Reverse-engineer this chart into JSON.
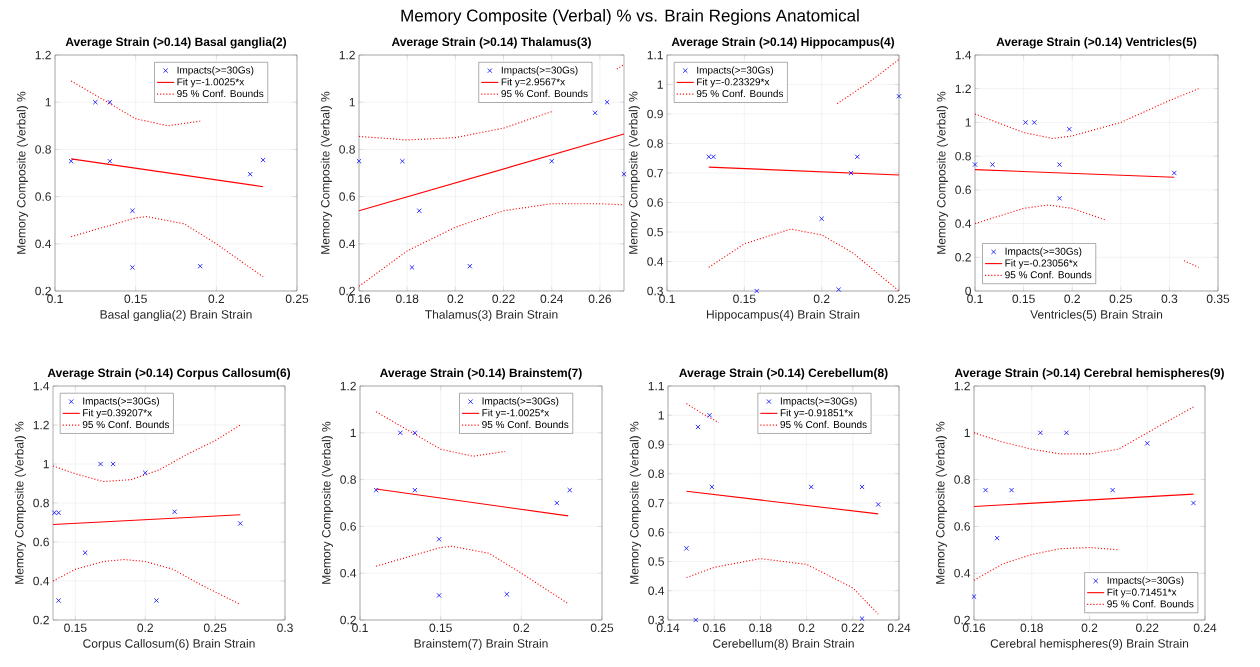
{
  "chart_data": [
    {
      "type": "scatter",
      "title": "Average Strain (>0.14) Basal ganglia(2)",
      "xlabel": "Basal ganglia(2) Brain Strain",
      "ylabel": "Memory Composite (Verbal) %",
      "annotations": [
        "Memory Composite (Verbal) % vs. Brain Regions Anatomical"
      ],
      "xlim": [
        0.1,
        0.25
      ],
      "ylim": [
        0.2,
        1.2
      ],
      "xticks": [
        0.1,
        0.15,
        0.2,
        0.25
      ],
      "yticks": [
        0.2,
        0.4,
        0.6,
        0.8,
        1,
        1.2
      ],
      "grid": true,
      "legend": "top right",
      "series": [
        {
          "name": "Impacts(>=30Gs)",
          "marker": "cross",
          "color": "#0000ff",
          "x": [
            0.11,
            0.125,
            0.134,
            0.134,
            0.148,
            0.148,
            0.19,
            0.221,
            0.229
          ],
          "values": [
            0.75,
            1,
            1,
            0.75,
            0.54,
            0.3,
            0.305,
            0.695,
            0.755
          ]
        },
        {
          "name": "Fit y=-1.0025*x",
          "type": "line",
          "line_style": "solid",
          "color": "#ff0000",
          "x": [
            0.11,
            0.229
          ],
          "values": [
            0.76,
            0.642
          ]
        },
        {
          "name": "95 % Conf. Bounds",
          "type": "line",
          "line_style": "dotted",
          "color": "#ff0000",
          "x": [
            0.11,
            0.13,
            0.15,
            0.17,
            0.19
          ],
          "values": [
            1.09,
            1.01,
            0.93,
            0.9,
            0.92
          ]
        },
        {
          "type": "line",
          "line_style": "dotted",
          "color": "#ff0000",
          "x": [
            0.11,
            0.13,
            0.15,
            0.157,
            0.18,
            0.2,
            0.229
          ],
          "values": [
            0.43,
            0.47,
            0.51,
            0.515,
            0.485,
            0.4,
            0.26
          ]
        }
      ]
    },
    {
      "type": "scatter",
      "title": "Average Strain (>0.14) Thalamus(3)",
      "xlabel": "Thalamus(3) Brain Strain",
      "ylabel": "Memory Composite (Verbal) %",
      "xlim": [
        0.16,
        0.27
      ],
      "ylim": [
        0.2,
        1.2
      ],
      "xticks": [
        0.16,
        0.18,
        0.2,
        0.22,
        0.24,
        0.26
      ],
      "yticks": [
        0.2,
        0.4,
        0.6,
        0.8,
        1,
        1.2
      ],
      "grid": true,
      "legend": "top right",
      "series": [
        {
          "name": "Impacts(>=30Gs)",
          "marker": "cross",
          "color": "#0000ff",
          "x": [
            0.16,
            0.178,
            0.182,
            0.185,
            0.206,
            0.24,
            0.258,
            0.263,
            0.27
          ],
          "values": [
            0.75,
            0.75,
            0.3,
            0.54,
            0.305,
            0.75,
            0.955,
            1,
            0.695
          ]
        },
        {
          "name": "Fit y=2.9567*x",
          "type": "line",
          "line_style": "solid",
          "color": "#ff0000",
          "x": [
            0.16,
            0.27
          ],
          "values": [
            0.54,
            0.865
          ]
        },
        {
          "name": "95 % Conf. Bounds",
          "type": "line",
          "line_style": "dotted",
          "color": "#ff0000",
          "x": [
            0.16,
            0.18,
            0.2,
            0.22,
            0.24,
            0.255,
            0.267,
            0.27
          ],
          "values": [
            0.855,
            0.84,
            0.85,
            0.89,
            0.96,
            null,
            1.14,
            1.16
          ]
        },
        {
          "type": "line",
          "line_style": "dotted",
          "color": "#ff0000",
          "x": [
            0.16,
            0.18,
            0.2,
            0.22,
            0.24,
            0.26,
            0.27
          ],
          "values": [
            0.22,
            0.37,
            0.47,
            0.54,
            0.57,
            0.57,
            0.565
          ]
        }
      ]
    },
    {
      "type": "scatter",
      "title": "Average Strain (>0.14) Hippocampus(4)",
      "xlabel": "Hippocampus(4) Brain Strain",
      "ylabel": "Memory Composite (Verbal) %",
      "xlim": [
        0.1,
        0.25
      ],
      "ylim": [
        0.3,
        1.1
      ],
      "xticks": [
        0.1,
        0.15,
        0.2,
        0.25
      ],
      "yticks": [
        0.3,
        0.4,
        0.5,
        0.6,
        0.7,
        0.8,
        0.9,
        1,
        1.1
      ],
      "grid": true,
      "legend": "top left",
      "series": [
        {
          "name": "Impacts(>=30Gs)",
          "marker": "cross",
          "color": "#0000ff",
          "x": [
            0.127,
            0.13,
            0.158,
            0.2,
            0.211,
            0.219,
            0.223,
            0.25
          ],
          "values": [
            0.755,
            0.755,
            0.3,
            0.545,
            0.305,
            0.7,
            0.755,
            0.96
          ]
        },
        {
          "name": "Fit y=-0.23329*x",
          "type": "line",
          "line_style": "solid",
          "color": "#ff0000",
          "x": [
            0.127,
            0.25
          ],
          "values": [
            0.72,
            0.693
          ]
        },
        {
          "name": "95 % Conf. Bounds",
          "type": "line",
          "line_style": "dotted",
          "color": "#ff0000",
          "x": [
            0.21,
            0.23,
            0.25
          ],
          "values": [
            0.935,
            1.005,
            1.085
          ]
        },
        {
          "type": "line",
          "line_style": "dotted",
          "color": "#ff0000",
          "x": [
            0.127,
            0.15,
            0.18,
            0.2,
            0.22,
            0.25
          ],
          "values": [
            0.38,
            0.46,
            0.51,
            0.49,
            0.43,
            0.3
          ]
        }
      ]
    },
    {
      "type": "scatter",
      "title": "Average Strain (>0.14) Ventricles(5)",
      "xlabel": "Ventricles(5) Brain Strain",
      "ylabel": "Memory Composite (Verbal) %",
      "xlim": [
        0.1,
        0.35
      ],
      "ylim": [
        0,
        1.4
      ],
      "xticks": [
        0.1,
        0.15,
        0.2,
        0.25,
        0.3,
        0.35
      ],
      "yticks": [
        0,
        0.2,
        0.4,
        0.6,
        0.8,
        1,
        1.2,
        1.4
      ],
      "grid": true,
      "legend": "bottom left",
      "series": [
        {
          "name": "Impacts(>=30Gs)",
          "marker": "cross",
          "color": "#0000ff",
          "x": [
            0.1,
            0.118,
            0.152,
            0.161,
            0.187,
            0.187,
            0.197,
            0.305
          ],
          "values": [
            0.75,
            0.75,
            1,
            1,
            0.75,
            0.55,
            0.96,
            0.7
          ]
        },
        {
          "name": "Fit y=-0.23056*x",
          "type": "line",
          "line_style": "solid",
          "color": "#ff0000",
          "x": [
            0.1,
            0.305
          ],
          "values": [
            0.72,
            0.675
          ]
        },
        {
          "name": "95 % Conf. Bounds",
          "type": "line",
          "line_style": "dotted",
          "color": "#ff0000",
          "x": [
            0.1,
            0.15,
            0.18,
            0.2,
            0.25,
            0.3,
            0.33
          ],
          "values": [
            1.05,
            0.94,
            0.905,
            0.92,
            1,
            1.13,
            1.2
          ]
        },
        {
          "type": "line",
          "line_style": "dotted",
          "color": "#ff0000",
          "x": [
            0.1,
            0.15,
            0.175,
            0.2,
            0.235,
            0.27,
            0.315,
            0.33
          ],
          "values": [
            0.4,
            0.49,
            0.51,
            0.49,
            0.42,
            null,
            0.18,
            0.14
          ]
        }
      ]
    },
    {
      "type": "scatter",
      "title": "Average Strain (>0.14) Corpus Callosum(6)",
      "xlabel": "Corpus Callosum(6) Brain Strain",
      "ylabel": "Memory Composite (Verbal) %",
      "xlim": [
        0.134,
        0.3
      ],
      "ylim": [
        0.2,
        1.4
      ],
      "xticks": [
        0.15,
        0.2,
        0.25,
        0.3
      ],
      "yticks": [
        0.2,
        0.4,
        0.6,
        0.8,
        1,
        1.2,
        1.4
      ],
      "grid": true,
      "legend": "top left",
      "series": [
        {
          "name": "Impacts(>=30Gs)",
          "marker": "cross",
          "color": "#0000ff",
          "x": [
            0.135,
            0.138,
            0.138,
            0.157,
            0.168,
            0.177,
            0.2,
            0.208,
            0.221,
            0.268
          ],
          "values": [
            0.75,
            0.75,
            0.3,
            0.545,
            1,
            1,
            0.955,
            0.3,
            0.755,
            0.695
          ]
        },
        {
          "name": "Fit y=0.39207*x",
          "type": "line",
          "line_style": "solid",
          "color": "#ff0000",
          "x": [
            0.134,
            0.268
          ],
          "values": [
            0.69,
            0.74
          ]
        },
        {
          "name": "95 % Conf. Bounds",
          "type": "line",
          "line_style": "dotted",
          "color": "#ff0000",
          "x": [
            0.134,
            0.15,
            0.17,
            0.19,
            0.21,
            0.23,
            0.25,
            0.268
          ],
          "values": [
            0.99,
            0.95,
            0.91,
            0.92,
            0.97,
            1.05,
            1.12,
            1.2
          ]
        },
        {
          "type": "line",
          "line_style": "dotted",
          "color": "#ff0000",
          "x": [
            0.134,
            0.15,
            0.17,
            0.185,
            0.2,
            0.22,
            0.24,
            0.268
          ],
          "values": [
            0.4,
            0.46,
            0.5,
            0.51,
            0.5,
            0.46,
            0.38,
            0.28
          ]
        }
      ]
    },
    {
      "type": "scatter",
      "title": "Average Strain (>0.14) Brainstem(7)",
      "xlabel": "Brainstem(7) Brain Strain",
      "ylabel": "Memory Composite (Verbal) %",
      "xlim": [
        0.1,
        0.25
      ],
      "ylim": [
        0.2,
        1.2
      ],
      "xticks": [
        0.1,
        0.15,
        0.2,
        0.25
      ],
      "yticks": [
        0.2,
        0.4,
        0.6,
        0.8,
        1,
        1.2
      ],
      "grid": true,
      "legend": "top right",
      "series": [
        {
          "name": "Impacts(>=30Gs)",
          "marker": "cross",
          "color": "#0000ff",
          "x": [
            0.11,
            0.125,
            0.134,
            0.134,
            0.149,
            0.149,
            0.191,
            0.222,
            0.23
          ],
          "values": [
            0.755,
            1,
            1,
            0.755,
            0.545,
            0.305,
            0.31,
            0.7,
            0.755
          ]
        },
        {
          "name": "Fit y=-1.0025*x",
          "type": "line",
          "line_style": "solid",
          "color": "#ff0000",
          "x": [
            0.11,
            0.229
          ],
          "values": [
            0.76,
            0.645
          ]
        },
        {
          "name": "95 % Conf. Bounds",
          "type": "line",
          "line_style": "dotted",
          "color": "#ff0000",
          "x": [
            0.11,
            0.13,
            0.15,
            0.17,
            0.19
          ],
          "values": [
            1.09,
            1.01,
            0.93,
            0.9,
            0.92
          ]
        },
        {
          "type": "line",
          "line_style": "dotted",
          "color": "#ff0000",
          "x": [
            0.11,
            0.13,
            0.15,
            0.157,
            0.18,
            0.2,
            0.229
          ],
          "values": [
            0.43,
            0.47,
            0.51,
            0.515,
            0.485,
            0.4,
            0.27
          ]
        }
      ]
    },
    {
      "type": "scatter",
      "title": "Average Strain (>0.14) Cerebellum(8)",
      "xlabel": "Cerebellum(8) Brain Strain",
      "ylabel": "Memory Composite (Verbal) %",
      "xlim": [
        0.14,
        0.24
      ],
      "ylim": [
        0.3,
        1.1
      ],
      "xticks": [
        0.14,
        0.16,
        0.18,
        0.2,
        0.22,
        0.24
      ],
      "yticks": [
        0.3,
        0.4,
        0.5,
        0.6,
        0.7,
        0.8,
        0.9,
        1,
        1.1
      ],
      "grid": true,
      "legend": "top right",
      "series": [
        {
          "name": "Impacts(>=30Gs)",
          "marker": "cross",
          "color": "#0000ff",
          "x": [
            0.148,
            0.152,
            0.153,
            0.158,
            0.159,
            0.202,
            0.224,
            0.224,
            0.231
          ],
          "values": [
            0.545,
            0.3,
            0.96,
            1,
            0.755,
            0.755,
            0.755,
            0.305,
            0.695
          ]
        },
        {
          "name": "Fit y=-0.91851*x",
          "type": "line",
          "line_style": "solid",
          "color": "#ff0000",
          "x": [
            0.148,
            0.231
          ],
          "values": [
            0.74,
            0.663
          ]
        },
        {
          "name": "95 % Conf. Bounds",
          "type": "line",
          "line_style": "dotted",
          "color": "#ff0000",
          "x": [
            0.148,
            0.155,
            0.162
          ],
          "values": [
            1.04,
            1.005,
            0.975
          ]
        },
        {
          "type": "line",
          "line_style": "dotted",
          "color": "#ff0000",
          "x": [
            0.148,
            0.16,
            0.18,
            0.2,
            0.22,
            0.231
          ],
          "values": [
            0.445,
            0.48,
            0.51,
            0.49,
            0.41,
            0.32
          ]
        }
      ]
    },
    {
      "type": "scatter",
      "title": "Average Strain (>0.14) Cerebral hemispheres(9)",
      "xlabel": "Cerebral hemispheres(9) Brain Strain",
      "ylabel": "Memory Composite (Verbal) %",
      "xlim": [
        0.16,
        0.24
      ],
      "ylim": [
        0.2,
        1.2
      ],
      "xticks": [
        0.16,
        0.18,
        0.2,
        0.22,
        0.24
      ],
      "yticks": [
        0.2,
        0.4,
        0.6,
        0.8,
        1,
        1.2
      ],
      "grid": true,
      "legend": "bottom right",
      "series": [
        {
          "name": "Impacts(>=30Gs)",
          "marker": "cross",
          "color": "#0000ff",
          "x": [
            0.16,
            0.164,
            0.168,
            0.173,
            0.183,
            0.192,
            0.208,
            0.22,
            0.236
          ],
          "values": [
            0.3,
            0.755,
            0.55,
            0.755,
            1,
            1,
            0.755,
            0.955,
            0.7
          ]
        },
        {
          "name": "Fit y=0.71451*x",
          "type": "line",
          "line_style": "solid",
          "color": "#ff0000",
          "x": [
            0.16,
            0.236
          ],
          "values": [
            0.685,
            0.738
          ]
        },
        {
          "name": "95 % Conf. Bounds",
          "type": "line",
          "line_style": "dotted",
          "color": "#ff0000",
          "x": [
            0.16,
            0.17,
            0.18,
            0.19,
            0.2,
            0.21,
            0.22,
            0.23,
            0.236
          ],
          "values": [
            1,
            0.96,
            0.93,
            0.91,
            0.91,
            0.93,
            1,
            1.07,
            1.11
          ]
        },
        {
          "type": "line",
          "line_style": "dotted",
          "color": "#ff0000",
          "x": [
            0.16,
            0.17,
            0.18,
            0.19,
            0.2,
            0.21
          ],
          "values": [
            0.37,
            0.44,
            0.48,
            0.505,
            0.51,
            0.5
          ]
        }
      ]
    }
  ]
}
